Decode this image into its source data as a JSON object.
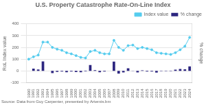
{
  "chart_data": {
    "type": "bar",
    "title": "U.S. Property Catastrophe Rate-On-Line Index",
    "annotations": [
      "Source: Data from Guy Carpenter, presented by Artemis.bm"
    ],
    "ylabel": "RoL Index value",
    "y2label": "% change",
    "categories": [
      1990,
      1991,
      1992,
      1993,
      1994,
      1995,
      1996,
      1997,
      1998,
      1999,
      2000,
      2001,
      2002,
      2003,
      2004,
      2005,
      2006,
      2007,
      2008,
      2009,
      2010,
      2011,
      2012,
      2013,
      2014,
      2015,
      2016,
      2017,
      2018,
      2019,
      2020,
      2021,
      2022,
      2023,
      2024
    ],
    "series": [
      {
        "name": "Index value",
        "type": "line",
        "color": "#55ccee",
        "marker": "circle",
        "values": [
          100,
          120,
          135,
          245,
          245,
          200,
          185,
          175,
          155,
          145,
          130,
          115,
          110,
          165,
          175,
          155,
          145,
          145,
          260,
          200,
          175,
          215,
          220,
          190,
          200,
          190,
          180,
          155,
          150,
          145,
          140,
          155,
          180,
          210,
          285
        ]
      },
      {
        "name": "% change",
        "type": "bar",
        "color": "#2d2680",
        "axis": "y2",
        "values": [
          0,
          20,
          12,
          80,
          0,
          -18,
          -8,
          -5,
          -11,
          -6,
          -10,
          -11,
          -4,
          50,
          6,
          -11,
          -6,
          0,
          79,
          -23,
          -12,
          23,
          2,
          -13,
          5,
          -5,
          -5,
          -14,
          -3,
          -3,
          -3,
          11,
          16,
          14,
          39
        ]
      }
    ],
    "ylim": [
      -100,
      400
    ],
    "yticks": [
      -100,
      0,
      100,
      200,
      300,
      400
    ],
    "y2lim": [
      -100,
      400
    ],
    "y2ticks": [],
    "grid": true,
    "legend": "upper right"
  }
}
